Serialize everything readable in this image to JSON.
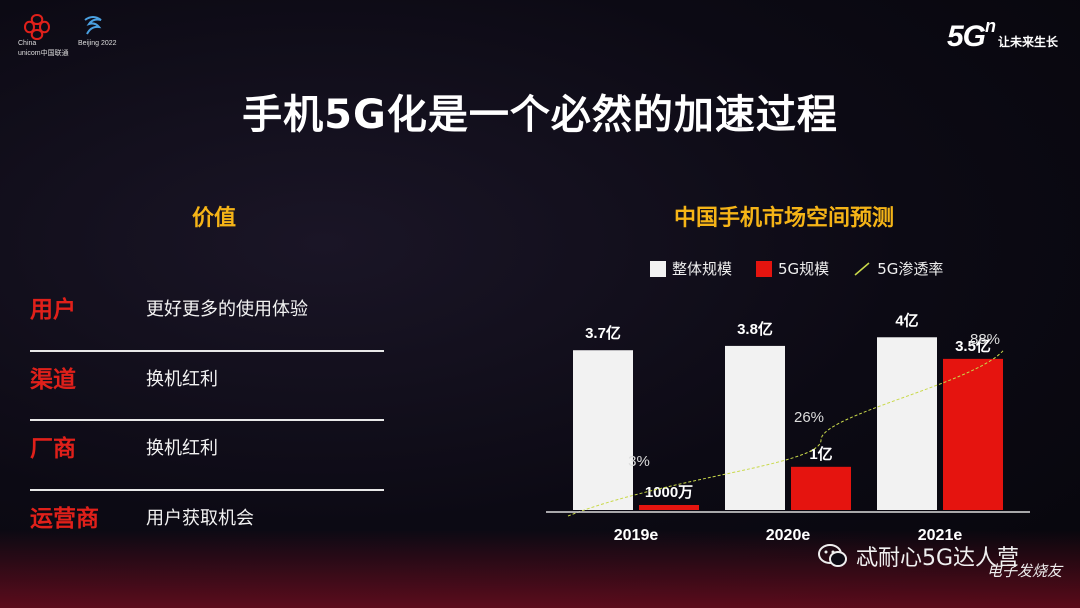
{
  "header": {
    "logo_line1": "China",
    "logo_line2": "unicom中国联通",
    "logo_beijing": "Beijing 2022",
    "brand_main": "5G",
    "brand_sup": "n",
    "brand_slogan": "让未来生长"
  },
  "title": "手机5G化是一个必然的加速过程",
  "left_panel": {
    "heading": "价值",
    "rows": [
      {
        "label": "用户",
        "text": "更好更多的使用体验"
      },
      {
        "label": "渠道",
        "text": "换机红利"
      },
      {
        "label": "厂商",
        "text": "换机红利"
      },
      {
        "label": "运营商",
        "text": "用户获取机会"
      }
    ]
  },
  "chart_panel": {
    "heading": "中国手机市场空间预测"
  },
  "colors": {
    "accent_yellow": "#f5b417",
    "accent_red": "#e0201a",
    "bar_total": "#f2f2f2",
    "bar_5g": "#e5140f",
    "line": "#c9d94a"
  },
  "chart_data": {
    "type": "bar",
    "categories": [
      "2019e",
      "2020e",
      "2021e"
    ],
    "series": [
      {
        "name": "整体规模",
        "values": [
          3.7,
          3.8,
          4.0
        ],
        "labels": [
          "3.7亿",
          "3.8亿",
          "4亿"
        ]
      },
      {
        "name": "5G规模",
        "values": [
          0.1,
          1.0,
          3.5
        ],
        "labels": [
          "1000万",
          "1亿",
          "3.5亿"
        ]
      }
    ],
    "line_series": {
      "name": "5G渗透率",
      "values": [
        3,
        26,
        88
      ],
      "labels": [
        "3%",
        "26%",
        "88%"
      ]
    },
    "ylim": [
      0,
      4.4
    ],
    "legend": "top"
  },
  "watermark": {
    "text": "忒耐心5G达人营",
    "corner": "电子发烧友"
  }
}
